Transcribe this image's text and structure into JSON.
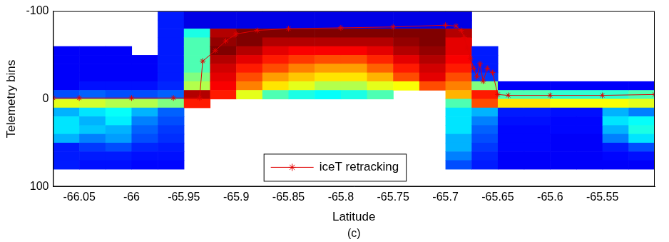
{
  "chart_data": {
    "type": "heatmap",
    "x_label": "Latitude",
    "y_label": "Telemetry bins",
    "annotations": [
      "(c)"
    ],
    "xlim": [
      -66.075,
      -65.5
    ],
    "ylim": [
      100,
      -100
    ],
    "xticks": [
      -66.05,
      -66,
      -65.95,
      -65.9,
      -65.85,
      -65.8,
      -65.75,
      -65.7,
      -65.65,
      -65.6,
      -65.55
    ],
    "yticks": [
      -100,
      0,
      100
    ],
    "grid": false,
    "legend": "lower center",
    "cells": {
      "x_edges": [
        -66.075,
        -66.05,
        -66.025,
        -66,
        -65.975,
        -65.95,
        -65.925,
        -65.9,
        -65.875,
        -65.85,
        -65.825,
        -65.8,
        -65.775,
        -65.75,
        -65.725,
        -65.7,
        -65.675,
        -65.65,
        -65.625,
        -65.6,
        -65.575,
        -65.55,
        -65.525,
        -65.5
      ],
      "y_edges": [
        -100,
        -90,
        -80,
        -70,
        -60,
        -50,
        -40,
        -30,
        -20,
        -10,
        0,
        10,
        20,
        30,
        40,
        50,
        60,
        70,
        80,
        90,
        100
      ],
      "zlim": [
        0,
        1
      ],
      "columns": [
        [
          null,
          null,
          null,
          null,
          0.12,
          0.12,
          0.12,
          0.12,
          0.12,
          0.2,
          0.6,
          0.3,
          0.35,
          0.35,
          0.3,
          0.15,
          0.15,
          0.15,
          null,
          null
        ],
        [
          null,
          null,
          null,
          null,
          0.12,
          0.12,
          0.12,
          0.12,
          0.14,
          0.22,
          0.58,
          0.35,
          0.3,
          0.32,
          0.25,
          0.18,
          0.15,
          0.14,
          null,
          null
        ],
        [
          null,
          null,
          null,
          null,
          0.12,
          0.12,
          0.12,
          0.12,
          0.14,
          0.2,
          0.55,
          0.38,
          0.36,
          0.3,
          0.28,
          0.2,
          0.15,
          0.14,
          null,
          null
        ],
        [
          null,
          null,
          null,
          null,
          null,
          0.12,
          0.12,
          0.12,
          0.14,
          0.2,
          0.55,
          0.3,
          0.25,
          0.22,
          0.2,
          0.16,
          0.14,
          0.13,
          null,
          null
        ],
        [
          0.15,
          0.15,
          0.15,
          0.15,
          0.15,
          0.15,
          0.15,
          0.15,
          0.16,
          0.22,
          0.5,
          0.22,
          0.2,
          0.18,
          0.17,
          0.15,
          0.14,
          0.13,
          null,
          null
        ],
        [
          0.1,
          0.1,
          0.4,
          0.45,
          0.45,
          0.45,
          0.45,
          0.5,
          0.55,
          0.95,
          0.85,
          null,
          null,
          null,
          null,
          null,
          null,
          null,
          null,
          null
        ],
        [
          0.1,
          0.1,
          0.95,
          0.98,
          1,
          0.95,
          0.92,
          0.9,
          0.88,
          0.85,
          null,
          null,
          null,
          null,
          null,
          null,
          null,
          null,
          null,
          null
        ],
        [
          0.1,
          0.1,
          1,
          1,
          0.95,
          0.9,
          0.85,
          0.8,
          0.75,
          0.6,
          null,
          null,
          null,
          null,
          null,
          null,
          null,
          null,
          null,
          null
        ],
        [
          0.1,
          0.1,
          1,
          0.95,
          0.9,
          0.85,
          0.8,
          0.72,
          0.65,
          0.45,
          null,
          null,
          null,
          null,
          null,
          null,
          null,
          null,
          null,
          null
        ],
        [
          0.1,
          0.1,
          1,
          0.95,
          0.88,
          0.82,
          0.75,
          0.68,
          0.6,
          0.4,
          null,
          null,
          null,
          null,
          null,
          null,
          null,
          null,
          null,
          null
        ],
        [
          0.1,
          0.1,
          1,
          0.95,
          0.88,
          0.8,
          0.72,
          0.65,
          0.55,
          0.38,
          null,
          null,
          null,
          null,
          null,
          null,
          null,
          null,
          null,
          null
        ],
        [
          0.1,
          0.1,
          1,
          0.95,
          0.88,
          0.8,
          0.72,
          0.65,
          0.55,
          0.4,
          null,
          null,
          null,
          null,
          null,
          null,
          null,
          null,
          null,
          null
        ],
        [
          0.1,
          0.1,
          1,
          0.95,
          0.9,
          0.84,
          0.78,
          0.7,
          0.6,
          0.45,
          null,
          null,
          null,
          null,
          null,
          null,
          null,
          null,
          null,
          null
        ],
        [
          0.1,
          0.1,
          1,
          0.98,
          0.95,
          0.9,
          0.85,
          0.8,
          0.62,
          null,
          null,
          null,
          null,
          null,
          null,
          null,
          null,
          null,
          null,
          null
        ],
        [
          0.1,
          0.1,
          1,
          1,
          0.98,
          0.95,
          0.92,
          0.9,
          0.8,
          null,
          null,
          null,
          null,
          null,
          null,
          null,
          null,
          null,
          null,
          null
        ],
        [
          0.1,
          0.1,
          0.95,
          0.9,
          0.9,
          0.88,
          0.85,
          0.8,
          0.75,
          0.7,
          0.45,
          0.35,
          0.35,
          0.35,
          0.3,
          0.3,
          0.25,
          0.2,
          null,
          null
        ],
        [
          null,
          null,
          null,
          null,
          0.15,
          0.15,
          0.15,
          0.18,
          0.5,
          0.85,
          0.8,
          0.3,
          0.25,
          0.22,
          0.2,
          0.18,
          0.16,
          0.15,
          null,
          null
        ],
        [
          null,
          null,
          null,
          null,
          null,
          null,
          null,
          null,
          0.12,
          0.45,
          0.65,
          0.15,
          0.14,
          0.13,
          0.13,
          0.13,
          0.12,
          0.12,
          null,
          null
        ],
        [
          null,
          null,
          null,
          null,
          null,
          null,
          null,
          null,
          0.12,
          0.45,
          0.65,
          0.15,
          0.14,
          0.13,
          0.13,
          0.13,
          0.12,
          0.12,
          null,
          null
        ],
        [
          null,
          null,
          null,
          null,
          null,
          null,
          null,
          null,
          0.12,
          0.42,
          0.62,
          0.14,
          0.13,
          0.13,
          0.12,
          0.12,
          0.12,
          0.12,
          null,
          null
        ],
        [
          null,
          null,
          null,
          null,
          null,
          null,
          null,
          null,
          0.12,
          0.42,
          0.62,
          0.14,
          0.13,
          0.13,
          0.12,
          0.12,
          0.12,
          0.12,
          null,
          null
        ],
        [
          null,
          null,
          null,
          null,
          null,
          null,
          null,
          null,
          0.12,
          0.42,
          0.62,
          0.3,
          0.35,
          0.3,
          0.25,
          0.15,
          0.13,
          0.12,
          null,
          null
        ],
        [
          null,
          null,
          null,
          null,
          null,
          null,
          null,
          null,
          0.12,
          0.45,
          0.6,
          0.25,
          0.38,
          0.4,
          0.35,
          0.2,
          0.14,
          0.12,
          null,
          null
        ]
      ]
    },
    "series": [
      {
        "name": "iceT retracking",
        "type": "line",
        "color": "#e00000",
        "marker": "star",
        "line_style": "solid",
        "x": [
          -66.075,
          -66.05,
          -66,
          -65.96,
          -65.935,
          -65.932,
          -65.92,
          -65.91,
          -65.9,
          -65.88,
          -65.85,
          -65.8,
          -65.75,
          -65.7,
          -65.69,
          -65.685,
          -65.682,
          -65.679,
          -65.676,
          -65.673,
          -65.67,
          -65.667,
          -65.664,
          -65.66,
          -65.655,
          -65.65,
          -65.64,
          -65.6,
          -65.55,
          -65.5
        ],
        "values": [
          -1,
          -1,
          -1,
          -1,
          -1,
          -43,
          -55,
          -66,
          -74,
          -78,
          -80,
          -81,
          -82,
          -84,
          -83,
          -78,
          -70,
          -58,
          -46,
          -35,
          -25,
          -40,
          -20,
          -35,
          -30,
          -5,
          -4,
          -4,
          -4,
          -5
        ]
      }
    ]
  }
}
